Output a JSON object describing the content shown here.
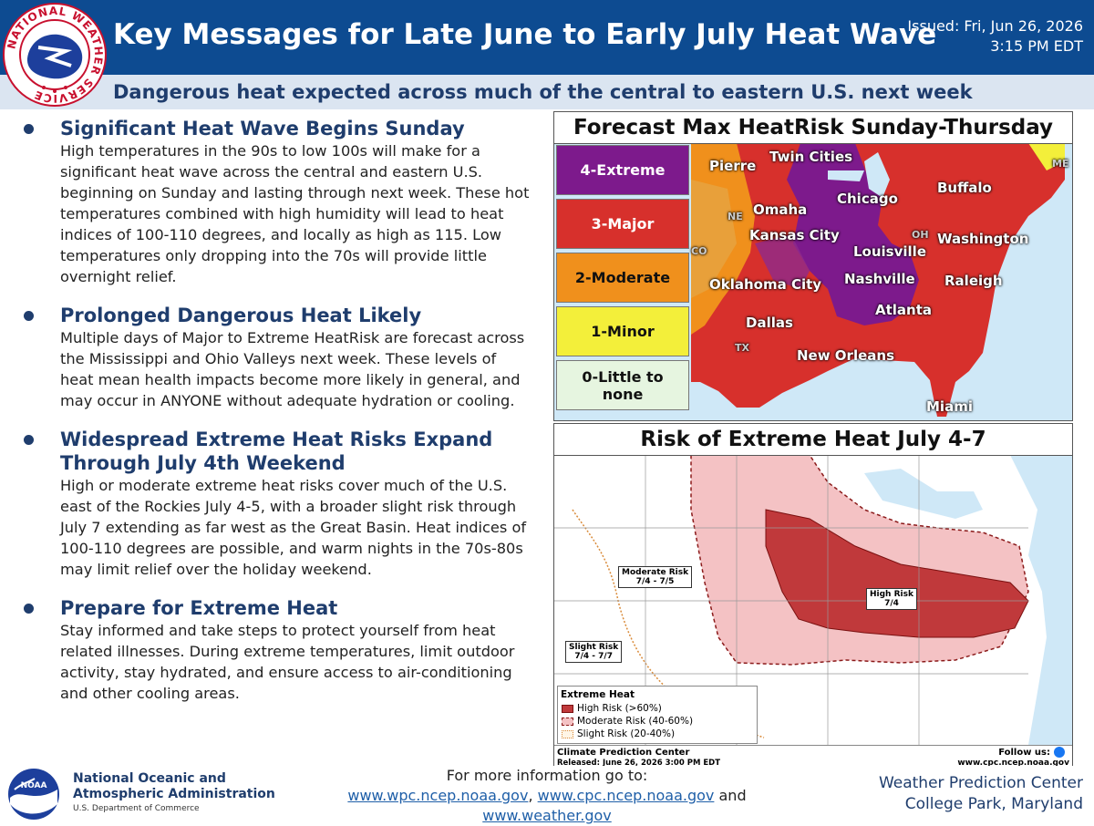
{
  "header": {
    "title": "Key Messages for Late June to Early July Heat Wave",
    "issued_line1": "Issued: Fri, Jun 26, 2026",
    "issued_line2": "3:15 PM EDT",
    "subtitle": "Dangerous heat expected across much of the central to eastern U.S. next week"
  },
  "bullets": [
    {
      "title": "Significant Heat Wave Begins Sunday",
      "body": "High temperatures in the 90s to low 100s will make for a significant heat wave across the central and eastern U.S. beginning on Sunday and lasting through next week. These hot temperatures combined with high humidity will lead to heat indices of 100-110 degrees, and locally as high as 115. Low temperatures only dropping into the 70s will provide little overnight relief."
    },
    {
      "title": "Prolonged Dangerous Heat Likely",
      "body": "Multiple days of Major to Extreme HeatRisk are forecast across the Mississippi and Ohio Valleys next week. These levels of heat mean health impacts become more likely in general, and may occur in ANYONE without adequate hydration or cooling."
    },
    {
      "title": "Widespread Extreme Heat Risks Expand Through July 4th Weekend",
      "body": "High or moderate extreme heat risks cover much of the U.S. east of the Rockies July 4-5, with a broader slight risk through July 7 extending as far west as the Great Basin. Heat indices of 100-110 degrees are possible, and warm nights in the 70s-80s may limit relief over the holiday weekend."
    },
    {
      "title": "Prepare for Extreme Heat",
      "body": "Stay informed and take steps to protect yourself from heat related illnesses. During extreme temperatures, limit outdoor activity, stay hydrated, and ensure access to air-conditioning and other cooling areas."
    }
  ],
  "heatrisk_map": {
    "title": "Forecast Max HeatRisk Sunday-Thursday",
    "legend": [
      {
        "label": "4-Extreme",
        "color": "#7d1a8c",
        "text_color": "#ffffff"
      },
      {
        "label": "3-Major",
        "color": "#d7302c",
        "text_color": "#ffffff"
      },
      {
        "label": "2-Moderate",
        "color": "#f0901c",
        "text_color": "#111111"
      },
      {
        "label": "1-Minor",
        "color": "#f3ef3a",
        "text_color": "#111111"
      },
      {
        "label": "0-Little to none",
        "color": "#e6f5e0",
        "text_color": "#111111"
      }
    ],
    "cities": [
      "Pierre",
      "Twin Cities",
      "Chicago",
      "Buffalo",
      "Omaha",
      "Kansas City",
      "Louisville",
      "Washington",
      "Nashville",
      "Raleigh",
      "Oklahoma City",
      "Atlanta",
      "Dallas",
      "New Orleans",
      "Miami"
    ],
    "state_codes": [
      "NE",
      "CO",
      "OH",
      "ME",
      "TX"
    ]
  },
  "extreme_map": {
    "title": "Risk of Extreme Heat July 4-7",
    "labels": {
      "moderate": "Moderate Risk",
      "moderate_dates": "7/4 - 7/5",
      "high": "High Risk",
      "high_dates": "7/4",
      "slight": "Slight Risk",
      "slight_dates": "7/4 - 7/7"
    },
    "legend_title": "Extreme Heat",
    "legend": [
      {
        "label": "High Risk (>60%)",
        "color": "#c0393b"
      },
      {
        "label": "Moderate Risk (40-60%)",
        "color": "#f4c2c4"
      },
      {
        "label": "Slight Risk (20-40%)",
        "color": "#fff5e6"
      }
    ],
    "cpc_name": "Climate Prediction Center",
    "released": "Released: June 26, 2026 3:00 PM EDT",
    "follow": "Follow us:",
    "cpc_url": "www.cpc.ncep.noaa.gov"
  },
  "footer": {
    "noaa_line1": "National Oceanic and",
    "noaa_line2": "Atmospheric Administration",
    "noaa_dept": "U.S. Department of Commerce",
    "more_info": "For more information go to:",
    "link1": "www.wpc.ncep.noaa.gov",
    "link2": "www.cpc.ncep.noaa.gov",
    "link3": "www.weather.gov",
    "sep": ",",
    "and": "and",
    "wpc_line1": "Weather Prediction Center",
    "wpc_line2": "College Park, Maryland"
  },
  "logos": {
    "nws": "NATIONAL WEATHER SERVICE",
    "noaa": "NOAA"
  }
}
